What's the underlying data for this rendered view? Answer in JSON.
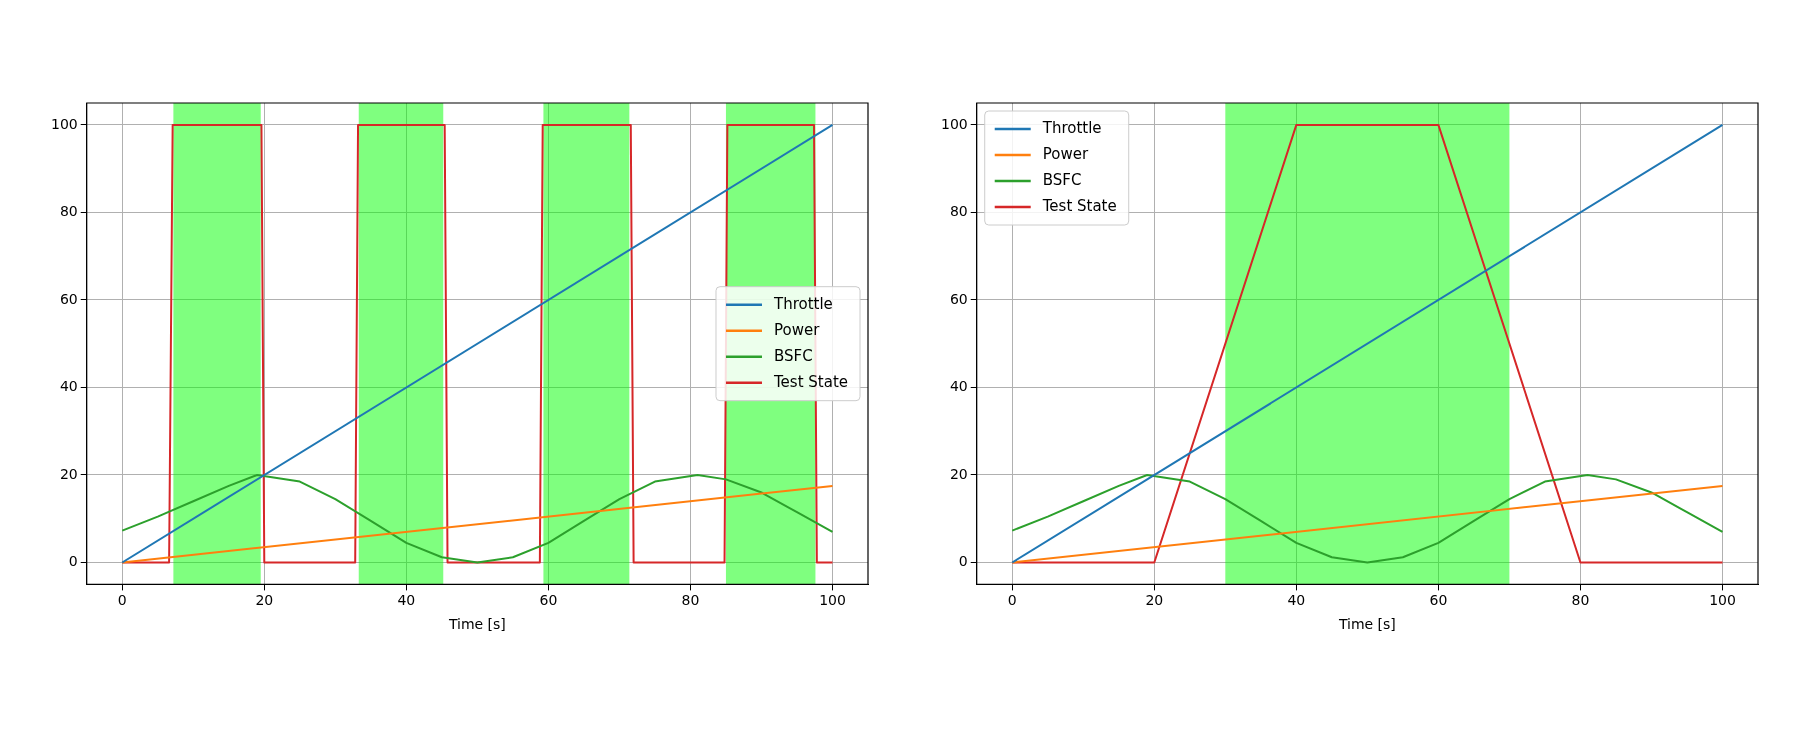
{
  "chart_data": [
    {
      "type": "line",
      "xlabel": "Time [s]",
      "xlim": [
        -5,
        105
      ],
      "xticks": [
        0,
        20,
        40,
        60,
        80,
        100
      ],
      "ylim": [
        -5,
        105
      ],
      "yticks": [
        0,
        20,
        40,
        60,
        80,
        100
      ],
      "grid": true,
      "legend": "right",
      "marker": "none",
      "line_style": "solid",
      "series": [
        {
          "name": "Throttle",
          "color": "#1f77b4",
          "x": [
            0,
            100
          ],
          "values": [
            0,
            100
          ]
        },
        {
          "name": "Power",
          "color": "#ff7f0e",
          "x": [
            0,
            100
          ],
          "values": [
            0,
            17.5
          ]
        },
        {
          "name": "BSFC",
          "color": "#2ca02c",
          "x": [
            0,
            5,
            10,
            15,
            19,
            25,
            30,
            35,
            40,
            45,
            50,
            55,
            60,
            65,
            70,
            75,
            81,
            85,
            90,
            95,
            100
          ],
          "values": [
            7.3,
            10.5,
            14,
            17.5,
            20,
            18.5,
            14.5,
            9.5,
            4.5,
            1.2,
            0,
            1.2,
            4.5,
            9.5,
            14.5,
            18.5,
            20,
            19,
            16,
            11.5,
            7
          ]
        },
        {
          "name": "Test State",
          "color": "#d62728",
          "x": [
            0,
            6.6,
            7.1,
            19.6,
            20,
            32.8,
            33.2,
            45.4,
            45.8,
            58.8,
            59.2,
            71.6,
            72,
            84.8,
            85.2,
            97.4,
            97.8,
            100
          ],
          "values": [
            0,
            0,
            100,
            100,
            0,
            0,
            100,
            100,
            0,
            0,
            100,
            100,
            0,
            0,
            100,
            100,
            0,
            0
          ]
        }
      ],
      "bands": [
        {
          "axis": "x",
          "from": 7.2,
          "to": 19.5,
          "color": "#00ff00"
        },
        {
          "axis": "x",
          "from": 33.3,
          "to": 45.2,
          "color": "#00ff00"
        },
        {
          "axis": "x",
          "from": 59.3,
          "to": 71.4,
          "color": "#00ff00"
        },
        {
          "axis": "x",
          "from": 85,
          "to": 97.6,
          "color": "#00ff00"
        }
      ]
    },
    {
      "type": "line",
      "xlabel": "Time [s]",
      "xlim": [
        -5,
        105
      ],
      "xticks": [
        0,
        20,
        40,
        60,
        80,
        100
      ],
      "ylim": [
        -5,
        105
      ],
      "yticks": [
        0,
        20,
        40,
        60,
        80,
        100
      ],
      "grid": true,
      "legend": "top left",
      "marker": "none",
      "line_style": "solid",
      "series": [
        {
          "name": "Throttle",
          "color": "#1f77b4",
          "x": [
            0,
            100
          ],
          "values": [
            0,
            100
          ]
        },
        {
          "name": "Power",
          "color": "#ff7f0e",
          "x": [
            0,
            100
          ],
          "values": [
            0,
            17.5
          ]
        },
        {
          "name": "BSFC",
          "color": "#2ca02c",
          "x": [
            0,
            5,
            10,
            15,
            19,
            25,
            30,
            35,
            40,
            45,
            50,
            55,
            60,
            65,
            70,
            75,
            81,
            85,
            90,
            95,
            100
          ],
          "values": [
            7.3,
            10.5,
            14,
            17.5,
            20,
            18.5,
            14.5,
            9.5,
            4.5,
            1.2,
            0,
            1.2,
            4.5,
            9.5,
            14.5,
            18.5,
            20,
            19,
            16,
            11.5,
            7
          ]
        },
        {
          "name": "Test State",
          "color": "#d62728",
          "x": [
            0,
            20,
            40,
            60,
            80,
            100
          ],
          "values": [
            0,
            0,
            100,
            100,
            0,
            0
          ]
        }
      ],
      "bands": [
        {
          "axis": "x",
          "from": 30,
          "to": 70,
          "color": "#00ff00"
        }
      ]
    }
  ]
}
